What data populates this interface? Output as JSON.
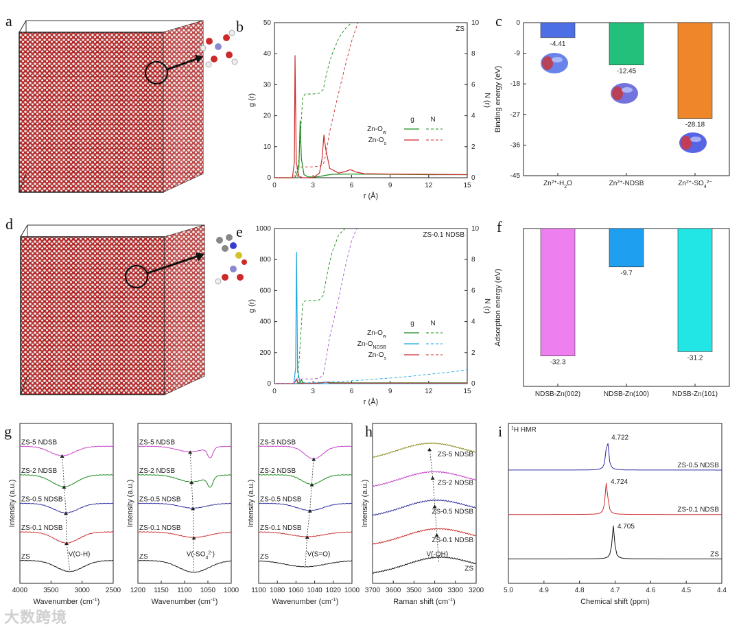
{
  "panels": {
    "a": "a",
    "b": "b",
    "c": "c",
    "d": "d",
    "e": "e",
    "f": "f",
    "g": "g",
    "h": "h",
    "i": "i"
  },
  "watermark": "大数跨境",
  "colors": {
    "green": "#1a8a1a",
    "red": "#cc2a2a",
    "cyan": "#1aa7e0",
    "violet": "#a060d0",
    "blue_bar": "#4d6fe6",
    "green_bar": "#22c07a",
    "orange_bar": "#f0862a",
    "magenta_bar": "#ee7fee",
    "azure_bar": "#1e9ff0",
    "cyan_bar": "#22e6e6",
    "magenta": "#c640c6",
    "olive": "#8a8a1a",
    "navy": "#2a2aa0",
    "black": "#111111"
  },
  "chart_data": [
    {
      "id": "b",
      "type": "line",
      "corner_label": "ZS",
      "xlabel": "r (Å)",
      "ylabel": "g (r)",
      "ylabel2": "N (r)",
      "xlim": [
        0,
        15
      ],
      "ylim": [
        0,
        50
      ],
      "y2lim": [
        0,
        10
      ],
      "xticks": [
        "0",
        "3",
        "6",
        "9",
        "12",
        "15"
      ],
      "yticks": [
        "0",
        "10",
        "20",
        "30",
        "40",
        "50"
      ],
      "y2ticks": [
        "0",
        "2",
        "4",
        "6",
        "8",
        "10"
      ],
      "legend": {
        "g": "g",
        "n": "N",
        "items": [
          {
            "base": "Zn-O",
            "sub": "w",
            "color": "#1a8a1a"
          },
          {
            "base": "Zn-O",
            "sub": "s",
            "color": "#cc2a2a"
          }
        ]
      },
      "series": [
        {
          "name": "Zn-Ow g",
          "axis": "left",
          "color": "#1a8a1a",
          "dash": false,
          "x": [
            0,
            1.6,
            1.9,
            2.0,
            2.1,
            2.3,
            2.6,
            3.0,
            3.5,
            4.0,
            4.5,
            6,
            9,
            12,
            15
          ],
          "y": [
            0,
            0,
            3,
            18.5,
            6,
            1,
            0.3,
            0.2,
            0.4,
            0.8,
            1.1,
            1.2,
            1.1,
            1.0,
            1.0
          ]
        },
        {
          "name": "Zn-Os g",
          "axis": "left",
          "color": "#cc2a2a",
          "dash": false,
          "x": [
            0,
            1.4,
            1.55,
            1.6,
            1.7,
            1.9,
            2.2,
            3.0,
            3.5,
            3.7,
            3.85,
            4.0,
            4.3,
            5,
            5.5,
            5.9,
            6.4,
            7,
            9,
            12,
            15
          ],
          "y": [
            0,
            0,
            5,
            39.5,
            5,
            0.5,
            0,
            0,
            1.5,
            6,
            13.8,
            9,
            3,
            1.5,
            2,
            2.6,
            1.8,
            1.3,
            1.2,
            1.1,
            1.0
          ]
        },
        {
          "name": "Zn-Ow N",
          "axis": "right",
          "color": "#1a8a1a",
          "dash": true,
          "x": [
            0,
            1.8,
            2.0,
            2.2,
            2.4,
            3.0,
            3.5,
            3.8,
            4.0,
            4.2,
            4.5,
            5.0,
            5.5,
            6.0
          ],
          "y": [
            0,
            0,
            2.5,
            5.2,
            5.4,
            5.4,
            5.45,
            5.7,
            6.5,
            7.2,
            8.0,
            9.0,
            9.6,
            10
          ]
        },
        {
          "name": "Zn-Os N",
          "axis": "right",
          "color": "#cc2a2a",
          "dash": true,
          "x": [
            0,
            1.5,
            1.65,
            1.8,
            2.5,
            3.0,
            3.5,
            3.8,
            4.0,
            4.3,
            5,
            5.5,
            6.0,
            6.5
          ],
          "y": [
            0,
            0,
            0.4,
            0.7,
            0.7,
            0.7,
            0.75,
            0.85,
            1.5,
            3,
            5.5,
            7.2,
            8.8,
            10
          ]
        }
      ]
    },
    {
      "id": "c",
      "type": "bar",
      "xlabel": "",
      "ylabel": "Binding energy (eV)",
      "ylim": [
        -45,
        0
      ],
      "yticks": [
        "0",
        "-9",
        "-18",
        "-27",
        "-36",
        "-45"
      ],
      "categories": [
        {
          "pre": "Zn",
          "sup": "2+",
          "mid": "-H",
          "sub": "2",
          "post": "O"
        },
        {
          "pre": "Zn",
          "sup": "2+",
          "mid": "-NDSB",
          "sub": "",
          "post": ""
        },
        {
          "pre": "Zn",
          "sup": "2+",
          "mid": "-SO",
          "sub": "4",
          "post": "",
          "sup2": "2−"
        }
      ],
      "values": [
        -4.41,
        -12.45,
        -28.18
      ],
      "labels": [
        "-4.41",
        "-12.45",
        "-28.18"
      ],
      "colors": [
        "#4d6fe6",
        "#22c07a",
        "#f0862a"
      ],
      "label_colors": [
        "#4d6fe6",
        "#22c07a",
        "#f0862a"
      ]
    },
    {
      "id": "e",
      "type": "line",
      "corner_label": "ZS-0.1 NDSB",
      "xlabel": "r (Å)",
      "ylabel": "g (r)",
      "ylabel2": "N (r)",
      "xlim": [
        0,
        15
      ],
      "ylim": [
        0,
        1000
      ],
      "y2lim": [
        0,
        10
      ],
      "xticks": [
        "0",
        "3",
        "6",
        "9",
        "12",
        "15"
      ],
      "yticks": [
        "0",
        "200",
        "400",
        "600",
        "800",
        "1000"
      ],
      "y2ticks": [
        "0",
        "2",
        "4",
        "6",
        "8",
        "10"
      ],
      "legend": {
        "g": "g",
        "n": "N",
        "items": [
          {
            "base": "Zn-O",
            "sub": "w",
            "color": "#1a8a1a"
          },
          {
            "base": "Zn-O",
            "sub": "NDSB",
            "color": "#1aa7e0"
          },
          {
            "base": "Zn-O",
            "sub": "s",
            "color": "#cc2a2a"
          }
        ]
      },
      "series": [
        {
          "name": "Zn-ONDSB g",
          "axis": "left",
          "color": "#1aa7e0",
          "dash": false,
          "x": [
            0,
            1.5,
            1.65,
            1.72,
            1.8,
            2.0,
            2.5,
            15
          ],
          "y": [
            0,
            0,
            100,
            850,
            80,
            5,
            0,
            0
          ]
        },
        {
          "name": "Zn-Ow g",
          "axis": "left",
          "color": "#1a8a1a",
          "dash": false,
          "x": [
            0,
            1.8,
            2.0,
            2.1,
            2.2,
            2.5,
            3.0,
            3.5,
            4,
            4.5,
            6,
            15
          ],
          "y": [
            0,
            0,
            10,
            25,
            8,
            2,
            2,
            4,
            10,
            6,
            5,
            5
          ]
        },
        {
          "name": "Zn-Os g",
          "axis": "left",
          "color": "#cc2a2a",
          "dash": false,
          "x": [
            0,
            1.5,
            1.6,
            1.7,
            1.8,
            2.0,
            3,
            3.8,
            4.0,
            4.3,
            6,
            15
          ],
          "y": [
            0,
            0,
            10,
            30,
            8,
            2,
            2,
            6,
            10,
            4,
            3,
            3
          ]
        },
        {
          "name": "Zn-Ow N",
          "axis": "right",
          "color": "#1a8a1a",
          "dash": true,
          "x": [
            0,
            1.8,
            2.0,
            2.2,
            2.4,
            3.0,
            3.5,
            3.8,
            4.0,
            4.2,
            4.5,
            5.0,
            5.5
          ],
          "y": [
            0,
            0,
            2.5,
            5.2,
            5.35,
            5.35,
            5.4,
            5.7,
            6.6,
            7.5,
            8.5,
            9.6,
            10
          ]
        },
        {
          "name": "Zn-ONDSB N",
          "axis": "right",
          "color": "#1aa7e0",
          "dash": true,
          "x": [
            0,
            1.6,
            1.8,
            2.5,
            4,
            6,
            8,
            10,
            12,
            14,
            15
          ],
          "y": [
            0,
            0,
            0.05,
            0.05,
            0.1,
            0.18,
            0.3,
            0.42,
            0.6,
            0.78,
            0.9
          ]
        },
        {
          "name": "Zn-Os N",
          "axis": "right",
          "color": "#a060d0",
          "dash": true,
          "x": [
            0,
            1.5,
            1.7,
            2.5,
            3.0,
            3.5,
            3.8,
            4.0,
            4.3,
            5,
            5.5,
            6.0,
            6.4
          ],
          "y": [
            0,
            0,
            0.3,
            0.3,
            0.3,
            0.35,
            0.6,
            1.5,
            3,
            5.5,
            7.5,
            9.2,
            10
          ]
        }
      ]
    },
    {
      "id": "f",
      "type": "bar",
      "xlabel": "",
      "ylabel": "Adsorption energy (eV)",
      "ylim": [
        -40,
        0
      ],
      "categories": [
        "NDSB-Zn(002)",
        "NDSB-Zn(100)",
        "NDSB-Zn(101)"
      ],
      "values": [
        -32.3,
        -9.7,
        -31.2
      ],
      "labels": [
        "-32.3",
        "-9.7",
        "-31.2"
      ],
      "colors": [
        "#ee7fee",
        "#1e9ff0",
        "#22e6e6"
      ],
      "label_colors": [
        "#c640c6",
        "#1e9ff0",
        "#22b0c0"
      ]
    },
    {
      "id": "g1",
      "type": "line",
      "xlabel": "Wavenumber (cm",
      "xlabel_sup": "-1",
      "xlabel_end": ")",
      "ylabel": "Intensity (a.u.)",
      "xlim": [
        4000,
        2500
      ],
      "xticks": [
        "4000",
        "3500",
        "3000",
        "2500"
      ],
      "annotation": "V(O-H)",
      "series": [
        {
          "name": "ZS",
          "color": "#111111",
          "dip": 3200,
          "width": 300,
          "depth": 0.7
        },
        {
          "name": "ZS-0.1 NDSB",
          "color": "#cc2a2a",
          "dip": 3250,
          "width": 280,
          "depth": 0.7
        },
        {
          "name": "ZS-0.5 NDSB",
          "color": "#2a2aa0",
          "dip": 3260,
          "width": 280,
          "depth": 0.6
        },
        {
          "name": "ZS-2 NDSB",
          "color": "#1a8a1a",
          "dip": 3290,
          "width": 280,
          "depth": 0.75
        },
        {
          "name": "ZS-5 NDSB",
          "color": "#c640c6",
          "dip": 3320,
          "width": 280,
          "depth": 0.6
        }
      ]
    },
    {
      "id": "g2",
      "type": "line",
      "xlabel": "Wavenumber (cm",
      "xlabel_sup": "-1",
      "xlabel_end": ")",
      "ylabel": "Intensity (a.u.)",
      "xlim": [
        1200,
        1000
      ],
      "xticks": [
        "1200",
        "1150",
        "1100",
        "1050",
        "1000"
      ],
      "annotation": "V(-SO",
      "annotation_sub": "4",
      "annotation_sup": "2-",
      "annotation_end": ")",
      "series": [
        {
          "name": "ZS",
          "color": "#111111",
          "dip": 1080,
          "width": 45,
          "depth": 0.75
        },
        {
          "name": "ZS-0.1 NDSB",
          "color": "#cc2a2a",
          "dip": 1080,
          "width": 45,
          "depth": 0.35
        },
        {
          "name": "ZS-0.5 NDSB",
          "color": "#2a2aa0",
          "dip": 1082,
          "width": 40,
          "depth": 0.3
        },
        {
          "name": "ZS-2 NDSB",
          "color": "#1a8a1a",
          "dip": 1085,
          "width": 40,
          "depth": 0.45
        },
        {
          "name": "ZS-5 NDSB",
          "color": "#c640c6",
          "dip": 1088,
          "width": 40,
          "depth": 0.35
        }
      ]
    },
    {
      "id": "g3",
      "type": "line",
      "xlabel": "Wavenumber (cm",
      "xlabel_sup": "-1",
      "xlabel_end": ")",
      "ylabel": "Intensity (a.u.)",
      "xlim": [
        1100,
        1000
      ],
      "xticks": [
        "1100",
        "1080",
        "1060",
        "1040",
        "1020",
        "1000"
      ],
      "annotation": "V(S=O)",
      "series": [
        {
          "name": "ZS",
          "color": "#111111",
          "dip": 1050,
          "width": 30,
          "depth": 0.4
        },
        {
          "name": "ZS-0.1 NDSB",
          "color": "#cc2a2a",
          "dip": 1048,
          "width": 25,
          "depth": 0.3
        },
        {
          "name": "ZS-0.5 NDSB",
          "color": "#2a2aa0",
          "dip": 1045,
          "width": 20,
          "depth": 0.45
        },
        {
          "name": "ZS-2 NDSB",
          "color": "#1a8a1a",
          "dip": 1043,
          "width": 15,
          "depth": 0.6
        },
        {
          "name": "ZS-5 NDSB",
          "color": "#c640c6",
          "dip": 1041,
          "width": 14,
          "depth": 0.8
        }
      ]
    },
    {
      "id": "h",
      "type": "line",
      "xlabel": "Raman shift (cm",
      "xlabel_sup": "-1",
      "xlabel_end": ")",
      "ylabel": "Intensity (a.u.)",
      "xlim": [
        3700,
        3200
      ],
      "xticks": [
        "3700",
        "3600",
        "3500",
        "3400",
        "3300",
        "3200"
      ],
      "annotation": "V(-OH)",
      "series": [
        {
          "name": "ZS",
          "color": "#111111",
          "peak": 3380
        },
        {
          "name": "ZS-0.1 NDSB",
          "color": "#cc2a2a",
          "peak": 3390
        },
        {
          "name": "ZS-0.5 NDSB",
          "color": "#2a2aa0",
          "peak": 3400
        },
        {
          "name": "ZS-2 NDSB",
          "color": "#c640c6",
          "peak": 3410
        },
        {
          "name": "ZS-5 NDSB",
          "color": "#8a8a1a",
          "peak": 3425
        }
      ]
    },
    {
      "id": "i",
      "type": "line",
      "xlabel": "Chemical shift (ppm)",
      "corner_label": "H HMR",
      "corner_sup": "1",
      "xlim": [
        5.0,
        4.4
      ],
      "xticks": [
        "5.0",
        "4.9",
        "4.8",
        "4.7",
        "4.6",
        "4.5",
        "4.4"
      ],
      "series": [
        {
          "name": "ZS",
          "color": "#111111",
          "peak": 4.705,
          "peak_label": "4.705"
        },
        {
          "name": "ZS-0.1 NDSB",
          "color": "#cc2a2a",
          "peak": 4.724,
          "peak_label": "4.724"
        },
        {
          "name": "ZS-0.5 NDSB",
          "color": "#2a2aa0",
          "peak": 4.722,
          "peak_label": "4.722"
        }
      ]
    }
  ]
}
